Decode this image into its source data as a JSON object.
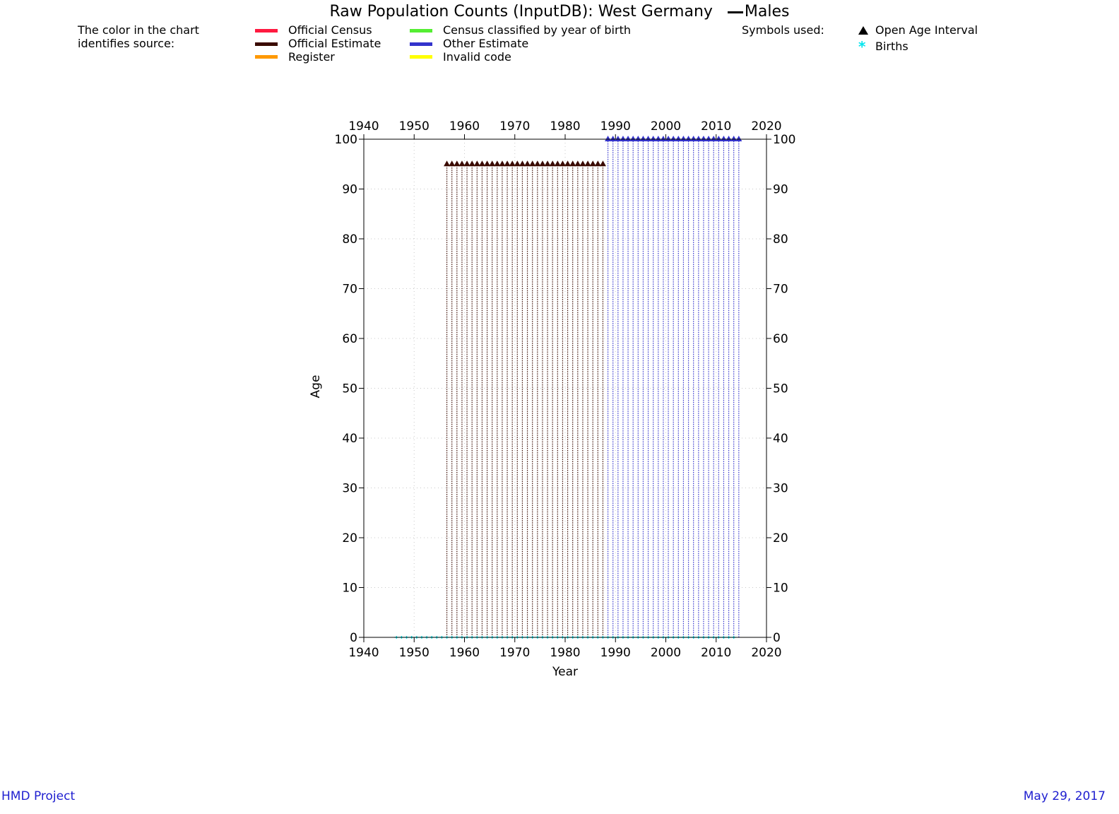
{
  "chart_data": {
    "type": "scatter",
    "title": "Raw Population Counts (InputDB): West Germany",
    "title_suffix": "Males",
    "xlabel": "Year",
    "ylabel": "Age",
    "xlim": [
      1940,
      2020
    ],
    "ylim": [
      0,
      100
    ],
    "xticks": [
      1940,
      1950,
      1960,
      1970,
      1980,
      1990,
      2000,
      2010,
      2020
    ],
    "yticks": [
      0,
      10,
      20,
      30,
      40,
      50,
      60,
      70,
      80,
      90,
      100
    ],
    "grid": true,
    "source_legend_heading": [
      "The color in the chart",
      "identifies source:"
    ],
    "source_legend": [
      {
        "label": "Official Census",
        "color": "#ff1a40"
      },
      {
        "label": "Official Estimate",
        "color": "#3a0a00"
      },
      {
        "label": "Register",
        "color": "#ff9900"
      },
      {
        "label": "Census classified by year of birth",
        "color": "#55ee33"
      },
      {
        "label": "Other Estimate",
        "color": "#3333cc"
      },
      {
        "label": "Invalid code",
        "color": "#ffff00"
      }
    ],
    "symbols_heading": "Symbols used:",
    "symbols": [
      {
        "label": "Open Age Interval",
        "symbol": "triangle",
        "color": "#000000"
      },
      {
        "label": "Births",
        "symbol": "asterisk",
        "color": "#00e5ee"
      }
    ],
    "series": [
      {
        "source": "Official Estimate",
        "color": "#3a0a00",
        "years_from": 1956,
        "years_to": 1987,
        "age_from": 0,
        "open_age": 95
      },
      {
        "source": "Other Estimate",
        "color": "#3333cc",
        "years_from": 1988,
        "years_to": 2014,
        "age_from": 0,
        "open_age": 100
      },
      {
        "source": "Births",
        "color": "#00e5ee",
        "years_from": 1946,
        "years_to": 2013,
        "age": 0
      }
    ]
  },
  "footer": {
    "left": "HMD Project",
    "right": "May 29, 2017"
  }
}
